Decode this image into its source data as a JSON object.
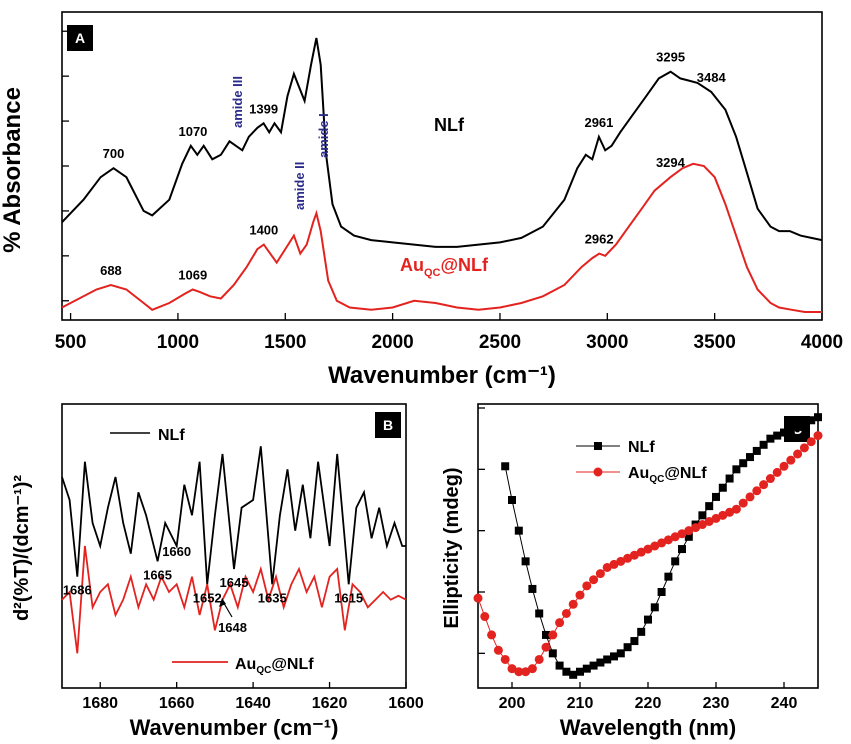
{
  "chart_data": [
    {
      "panel": "A",
      "type": "line",
      "xlabel": "Wavenumber (cm⁻¹)",
      "ylabel": "% Absorbance",
      "xlim": [
        460,
        4000
      ],
      "xticks": [
        "500",
        "1000",
        "1500",
        "2000",
        "2500",
        "3000",
        "3500",
        "4000"
      ],
      "series": [
        {
          "name": "NLf",
          "color": "#000000",
          "x": [
            460,
            560,
            640,
            700,
            760,
            840,
            880,
            960,
            1020,
            1060,
            1090,
            1120,
            1160,
            1200,
            1240,
            1270,
            1300,
            1330,
            1370,
            1399,
            1425,
            1450,
            1480,
            1510,
            1540,
            1565,
            1590,
            1620,
            1645,
            1665,
            1690,
            1720,
            1760,
            1820,
            1900,
            2000,
            2100,
            2200,
            2300,
            2400,
            2500,
            2600,
            2700,
            2800,
            2860,
            2900,
            2930,
            2961,
            2990,
            3020,
            3060,
            3120,
            3180,
            3240,
            3295,
            3340,
            3380,
            3420,
            3484,
            3550,
            3600,
            3650,
            3700,
            3760,
            3800,
            3850,
            3900,
            3950,
            4000
          ],
          "y": [
            0.4,
            0.5,
            0.6,
            0.64,
            0.6,
            0.45,
            0.43,
            0.5,
            0.66,
            0.74,
            0.7,
            0.74,
            0.68,
            0.7,
            0.76,
            0.74,
            0.72,
            0.78,
            0.82,
            0.84,
            0.8,
            0.84,
            0.8,
            0.96,
            1.06,
            1.0,
            0.94,
            1.1,
            1.22,
            1.1,
            0.7,
            0.48,
            0.38,
            0.34,
            0.32,
            0.31,
            0.3,
            0.29,
            0.29,
            0.3,
            0.31,
            0.33,
            0.38,
            0.5,
            0.64,
            0.7,
            0.68,
            0.78,
            0.72,
            0.74,
            0.8,
            0.88,
            0.96,
            1.04,
            1.07,
            1.04,
            1.03,
            1.02,
            0.98,
            0.9,
            0.78,
            0.62,
            0.46,
            0.38,
            0.36,
            0.36,
            0.34,
            0.33,
            0.32
          ]
        },
        {
          "name": "Au_QC@NLf",
          "color": "#e3231f",
          "x": [
            460,
            540,
            620,
            688,
            760,
            840,
            880,
            960,
            1030,
            1069,
            1100,
            1150,
            1200,
            1260,
            1320,
            1370,
            1400,
            1430,
            1460,
            1500,
            1540,
            1570,
            1600,
            1630,
            1645,
            1665,
            1700,
            1740,
            1800,
            1900,
            2000,
            2100,
            2200,
            2300,
            2400,
            2500,
            2600,
            2700,
            2800,
            2880,
            2930,
            2962,
            2990,
            3040,
            3100,
            3160,
            3220,
            3294,
            3350,
            3400,
            3450,
            3500,
            3550,
            3600,
            3650,
            3700,
            3760,
            3800,
            3860,
            3920,
            4000
          ],
          "y": [
            0.02,
            0.06,
            0.1,
            0.12,
            0.1,
            0.04,
            0.01,
            0.04,
            0.08,
            0.1,
            0.09,
            0.07,
            0.06,
            0.12,
            0.2,
            0.28,
            0.3,
            0.26,
            0.22,
            0.28,
            0.34,
            0.26,
            0.3,
            0.4,
            0.44,
            0.36,
            0.14,
            0.05,
            0.02,
            0.01,
            0.02,
            0.05,
            0.04,
            0.02,
            0.01,
            0.02,
            0.04,
            0.07,
            0.12,
            0.2,
            0.24,
            0.26,
            0.25,
            0.3,
            0.38,
            0.46,
            0.54,
            0.6,
            0.64,
            0.66,
            0.65,
            0.6,
            0.48,
            0.34,
            0.2,
            0.1,
            0.04,
            0.02,
            0.01,
            0.0,
            0.0
          ]
        }
      ],
      "annotations": [
        {
          "text": "700",
          "x": 700,
          "series": 0
        },
        {
          "text": "1070",
          "x": 1070,
          "series": 0
        },
        {
          "text": "1399",
          "x": 1399,
          "series": 0
        },
        {
          "text": "2961",
          "x": 2961,
          "series": 0
        },
        {
          "text": "3295",
          "x": 3295,
          "series": 0
        },
        {
          "text": "3484",
          "x": 3484,
          "series": 0
        },
        {
          "text": "688",
          "x": 688,
          "series": 1
        },
        {
          "text": "1069",
          "x": 1069,
          "series": 1
        },
        {
          "text": "1400",
          "x": 1400,
          "series": 1
        },
        {
          "text": "2962",
          "x": 2962,
          "series": 1
        },
        {
          "text": "3294",
          "x": 3294,
          "series": 1
        }
      ],
      "band_labels": [
        "amide III",
        "amide II",
        "amide I"
      ],
      "series_labels": {
        "nlf": "NLf",
        "au_main": "Au",
        "au_sub": "QC",
        "au_tail": "@NLf"
      },
      "panel_tag": "A"
    },
    {
      "panel": "B",
      "type": "line",
      "xlabel": "Wavenumber (cm⁻¹)",
      "ylabel": "d²(%T)/(dcm⁻¹)²",
      "xlim": [
        1690,
        1600
      ],
      "xticks": [
        "1680",
        "1660",
        "1640",
        "1620",
        "1600"
      ],
      "series": [
        {
          "name": "NLf",
          "color": "#000000",
          "x": [
            1690,
            1688,
            1686,
            1684,
            1682,
            1680,
            1678,
            1676,
            1674,
            1672,
            1670,
            1668,
            1665,
            1663,
            1660,
            1658,
            1656,
            1654,
            1652,
            1650,
            1648,
            1645,
            1643,
            1640,
            1638,
            1635,
            1633,
            1631,
            1629,
            1627,
            1625,
            1623,
            1620,
            1618,
            1615,
            1613,
            1611,
            1609,
            1607,
            1605,
            1603,
            1601,
            1600
          ],
          "y": [
            0.7,
            0.4,
            -0.6,
            0.9,
            0.1,
            -0.2,
            0.3,
            0.7,
            0.1,
            -0.3,
            0.5,
            0.2,
            -0.4,
            0.1,
            -0.2,
            0.6,
            0.2,
            0.9,
            -0.7,
            0.2,
            1.0,
            -0.5,
            0.3,
            0.4,
            1.1,
            -0.7,
            0.2,
            0.8,
            0.0,
            0.6,
            -0.1,
            0.9,
            -0.2,
            1.0,
            -0.7,
            0.3,
            0.5,
            -0.1,
            0.3,
            -0.2,
            0.1,
            -0.2,
            -0.2
          ]
        },
        {
          "name": "Au_QC@NLf",
          "color": "#e3231f",
          "x": [
            1690,
            1688,
            1686,
            1684,
            1682,
            1680,
            1678,
            1676,
            1674,
            1672,
            1670,
            1668,
            1666,
            1664,
            1662,
            1660,
            1658,
            1656,
            1654,
            1652,
            1650,
            1648,
            1646,
            1644,
            1642,
            1640,
            1638,
            1636,
            1634,
            1632,
            1630,
            1628,
            1626,
            1624,
            1622,
            1620,
            1618,
            1616,
            1614,
            1612,
            1610,
            1608,
            1606,
            1604,
            1602,
            1600
          ],
          "y": [
            -0.9,
            -0.8,
            -1.6,
            -0.2,
            -1.0,
            -0.8,
            -0.7,
            -1.1,
            -0.9,
            -0.6,
            -1.0,
            -0.7,
            -0.9,
            -0.6,
            -0.8,
            -0.7,
            -1.0,
            -0.6,
            -1.1,
            -0.7,
            -1.3,
            -0.9,
            -0.7,
            -1.0,
            -0.6,
            -0.8,
            -0.5,
            -0.9,
            -0.6,
            -1.0,
            -0.7,
            -0.5,
            -0.8,
            -0.6,
            -1.0,
            -0.6,
            -0.5,
            -1.3,
            -0.7,
            -0.8,
            -1.0,
            -0.9,
            -0.8,
            -0.9,
            -0.85,
            -0.9
          ]
        }
      ],
      "annotations": [
        {
          "text": "1686",
          "x": 1686
        },
        {
          "text": "1665",
          "x": 1665
        },
        {
          "text": "1660",
          "x": 1660
        },
        {
          "text": "1652",
          "x": 1652
        },
        {
          "text": "1645",
          "x": 1645
        },
        {
          "text": "1635",
          "x": 1635
        },
        {
          "text": "1615",
          "x": 1615
        },
        {
          "text": "1648",
          "x": 1648
        }
      ],
      "legend": {
        "nlf": "NLf",
        "au_main": "Au",
        "au_sub": "QC",
        "au_tail": "@NLf"
      },
      "panel_tag": "B"
    },
    {
      "panel": "C",
      "type": "scatter",
      "xlabel": "Wavelength (nm)",
      "ylabel": "Ellipticity (mdeg)",
      "xlim": [
        195,
        245
      ],
      "xticks": [
        "200",
        "210",
        "220",
        "230",
        "240"
      ],
      "series": [
        {
          "name": "NLf",
          "color": "#000000",
          "marker": "square",
          "x": [
            199,
            200,
            201,
            202,
            203,
            204,
            205,
            206,
            207,
            208,
            209,
            210,
            211,
            212,
            213,
            214,
            215,
            216,
            217,
            218,
            219,
            220,
            221,
            222,
            223,
            224,
            225,
            226,
            227,
            228,
            229,
            230,
            231,
            232,
            233,
            234,
            235,
            236,
            237,
            238,
            239,
            240,
            241,
            242,
            243,
            244,
            245
          ],
          "y": [
            21,
            10,
            0,
            -10,
            -19,
            -27,
            -34,
            -40,
            -44,
            -46,
            -47,
            -46,
            -45,
            -44,
            -43,
            -42,
            -41,
            -40,
            -38,
            -36,
            -33,
            -29,
            -25,
            -20,
            -15,
            -10,
            -6,
            -2,
            2,
            5,
            8,
            11,
            14,
            17,
            20,
            22,
            24,
            26,
            28,
            30,
            31,
            32,
            33,
            34,
            35,
            36,
            37
          ]
        },
        {
          "name": "Au_QC@NLf",
          "color": "#e3231f",
          "marker": "circle",
          "x": [
            195,
            196,
            197,
            198,
            199,
            200,
            201,
            202,
            203,
            204,
            205,
            206,
            207,
            208,
            209,
            210,
            211,
            212,
            213,
            214,
            215,
            216,
            217,
            218,
            219,
            220,
            221,
            222,
            223,
            224,
            225,
            226,
            227,
            228,
            229,
            230,
            231,
            232,
            233,
            234,
            235,
            236,
            237,
            238,
            239,
            240,
            241,
            242,
            243,
            244,
            245
          ],
          "y": [
            -22,
            -28,
            -34,
            -39,
            -42,
            -45,
            -46,
            -46,
            -45,
            -42,
            -38,
            -34,
            -30,
            -27,
            -24,
            -21,
            -18,
            -16,
            -14,
            -12,
            -11,
            -10,
            -9,
            -8,
            -7,
            -6,
            -5,
            -4,
            -3,
            -2,
            -1,
            0,
            1,
            2,
            3,
            4,
            5,
            6,
            7,
            9,
            11,
            13,
            15,
            17,
            19,
            21,
            23,
            25,
            27,
            29,
            31
          ]
        }
      ],
      "legend": {
        "nlf": "NLf",
        "au_main": "Au",
        "au_sub": "QC",
        "au_tail": "@NLf"
      },
      "panel_tag": "C"
    }
  ]
}
